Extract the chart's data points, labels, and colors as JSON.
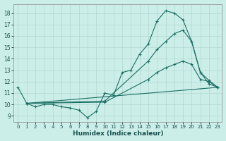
{
  "xlabel": "Humidex (Indice chaleur)",
  "bg_color": "#cceee8",
  "grid_color": "#b0d8d0",
  "line_color": "#1a6e64",
  "xlim": [
    -0.5,
    23.5
  ],
  "ylim": [
    8.5,
    18.8
  ],
  "xticks": [
    0,
    1,
    2,
    3,
    4,
    5,
    6,
    7,
    8,
    9,
    10,
    11,
    12,
    13,
    14,
    15,
    16,
    17,
    18,
    19,
    20,
    21,
    22,
    23
  ],
  "yticks": [
    9,
    10,
    11,
    12,
    13,
    14,
    15,
    16,
    17,
    18
  ],
  "lines": [
    {
      "x": [
        0,
        1,
        2,
        3,
        4,
        5,
        6,
        7,
        8,
        9,
        10,
        11,
        12,
        13,
        14,
        15,
        16,
        17,
        18,
        19,
        20,
        21,
        22,
        23
      ],
      "y": [
        11.5,
        10.1,
        9.8,
        10.0,
        10.0,
        9.8,
        9.7,
        9.5,
        8.85,
        9.4,
        11.0,
        10.8,
        12.8,
        13.0,
        14.4,
        15.3,
        17.3,
        18.2,
        18.0,
        17.4,
        15.5,
        12.8,
        12.1,
        11.5
      ],
      "markers": [
        0,
        1,
        2,
        3,
        4,
        5,
        6,
        7,
        8,
        9,
        10,
        11,
        12,
        13,
        14,
        15,
        16,
        17,
        18,
        19,
        20,
        21,
        22,
        23
      ]
    },
    {
      "x": [
        1,
        10,
        15,
        16,
        17,
        18,
        19,
        20,
        21,
        22,
        23
      ],
      "y": [
        10.1,
        10.3,
        13.8,
        14.8,
        15.5,
        16.2,
        16.5,
        15.5,
        12.8,
        11.8,
        11.5
      ],
      "markers": [
        1,
        10,
        15,
        16,
        17,
        18,
        19,
        20,
        21,
        22,
        23
      ]
    },
    {
      "x": [
        1,
        10,
        15,
        16,
        17,
        18,
        19,
        20,
        21,
        22,
        23
      ],
      "y": [
        10.1,
        10.2,
        12.2,
        12.8,
        13.2,
        13.5,
        13.8,
        13.5,
        12.2,
        12.0,
        11.5
      ],
      "markers": [
        1,
        10,
        15,
        16,
        17,
        18,
        19,
        20,
        21,
        22,
        23
      ]
    },
    {
      "x": [
        1,
        23
      ],
      "y": [
        10.1,
        11.5
      ],
      "markers": [
        1,
        23
      ]
    }
  ]
}
